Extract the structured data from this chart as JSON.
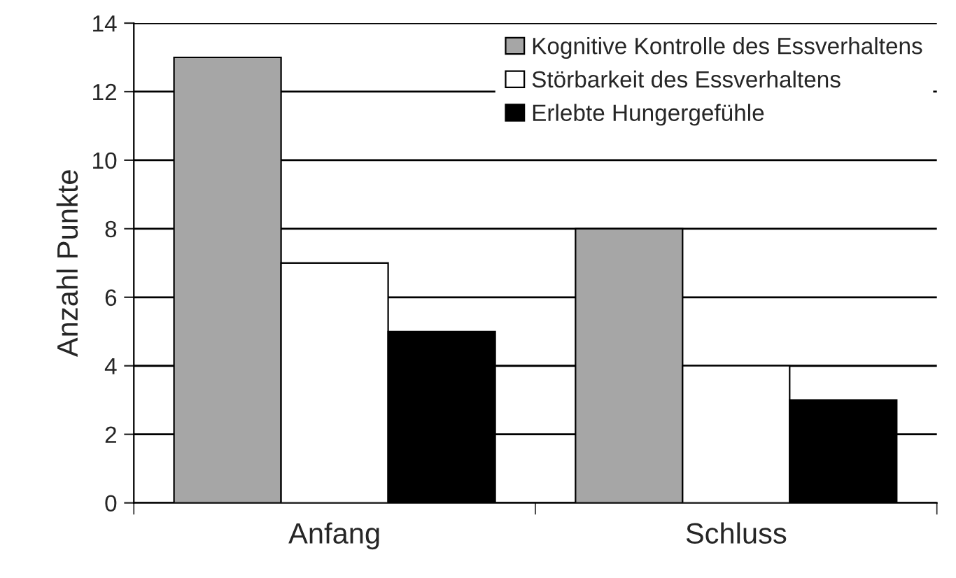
{
  "chart_data": {
    "type": "bar",
    "ylabel": "Anzahl Punkte",
    "categories": [
      "Anfang",
      "Schluss"
    ],
    "series": [
      {
        "name": "Kognitive Kontrolle des Essverhaltens",
        "color": "#a6a6a6",
        "values": [
          13,
          8
        ]
      },
      {
        "name": "Störbarkeit des Essverhaltens",
        "color": "#ffffff",
        "values": [
          7,
          4
        ]
      },
      {
        "name": "Erlebte Hungergefühle",
        "color": "#000000",
        "values": [
          5,
          3
        ]
      }
    ],
    "ylim": [
      0,
      14
    ],
    "yticks": [
      0,
      2,
      4,
      6,
      8,
      10,
      12,
      14
    ],
    "grid": "y",
    "legend": "top right"
  }
}
